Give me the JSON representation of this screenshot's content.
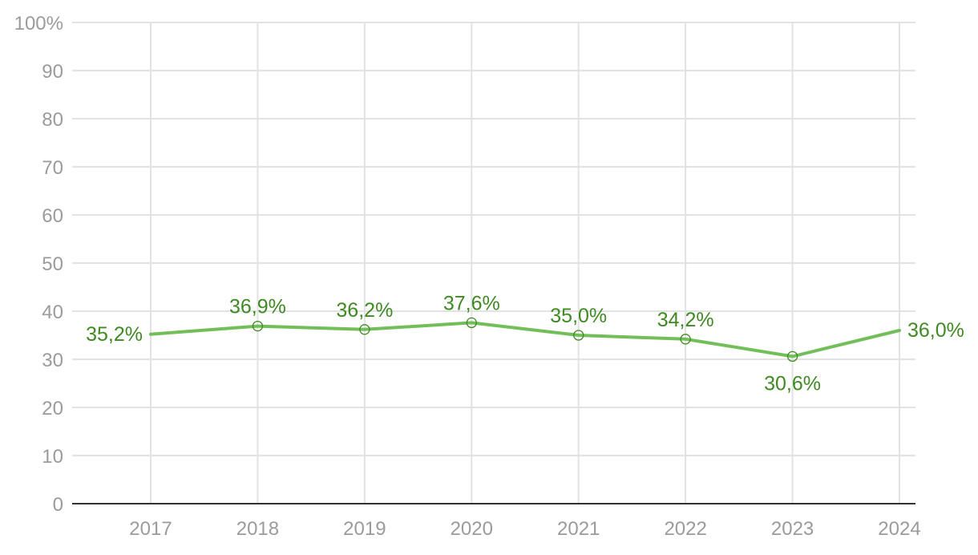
{
  "chart_data": {
    "type": "line",
    "title": "",
    "xlabel": "",
    "ylabel": "",
    "categories": [
      "2017",
      "2018",
      "2019",
      "2020",
      "2021",
      "2022",
      "2023",
      "2024"
    ],
    "series": [
      {
        "values": [
          35.2,
          36.9,
          36.2,
          37.6,
          35.0,
          34.2,
          30.6,
          36.0
        ],
        "labels": [
          "35,2%",
          "36,9%",
          "36,2%",
          "37,6%",
          "35,0%",
          "34,2%",
          "30,6%",
          "36,0%"
        ],
        "color": "#72bf5a",
        "label_color": "#3f8a23"
      }
    ],
    "ylim": [
      0,
      100
    ],
    "y_ticks": [
      0,
      10,
      20,
      30,
      40,
      50,
      60,
      70,
      80,
      90,
      100
    ],
    "y_tick_labels": [
      "0",
      "10",
      "20",
      "30",
      "40",
      "50",
      "60",
      "70",
      "80",
      "90",
      "100%"
    ],
    "grid": true,
    "grid_color": "#e2e2e2",
    "axis_label_color": "#9b9b9b"
  }
}
